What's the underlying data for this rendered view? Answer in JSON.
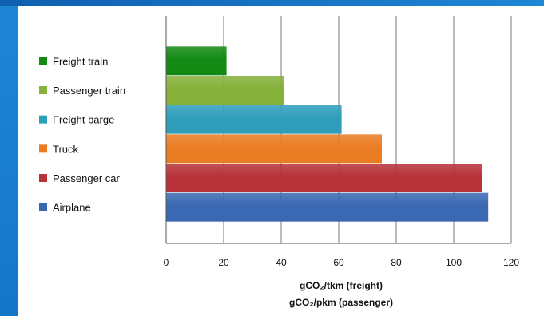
{
  "chart_data": {
    "type": "bar",
    "orientation": "horizontal",
    "categories": [
      "Freight train",
      "Passenger train",
      "Freight barge",
      "Truck",
      "Passenger car",
      "Airplane"
    ],
    "values": [
      21,
      41,
      61,
      75,
      110,
      112
    ],
    "colors": [
      "#138a13",
      "#86b23b",
      "#2f9ebb",
      "#ea7d23",
      "#b8323a",
      "#3b68b2"
    ],
    "xlim": [
      0,
      120
    ],
    "xticks": [
      0,
      20,
      40,
      60,
      80,
      100,
      120
    ],
    "xlabel_line1": "gCO₂/tkm (freight)",
    "xlabel_line2": "gCO₂/pkm (passenger)",
    "grid": true,
    "legend_position": "left"
  }
}
